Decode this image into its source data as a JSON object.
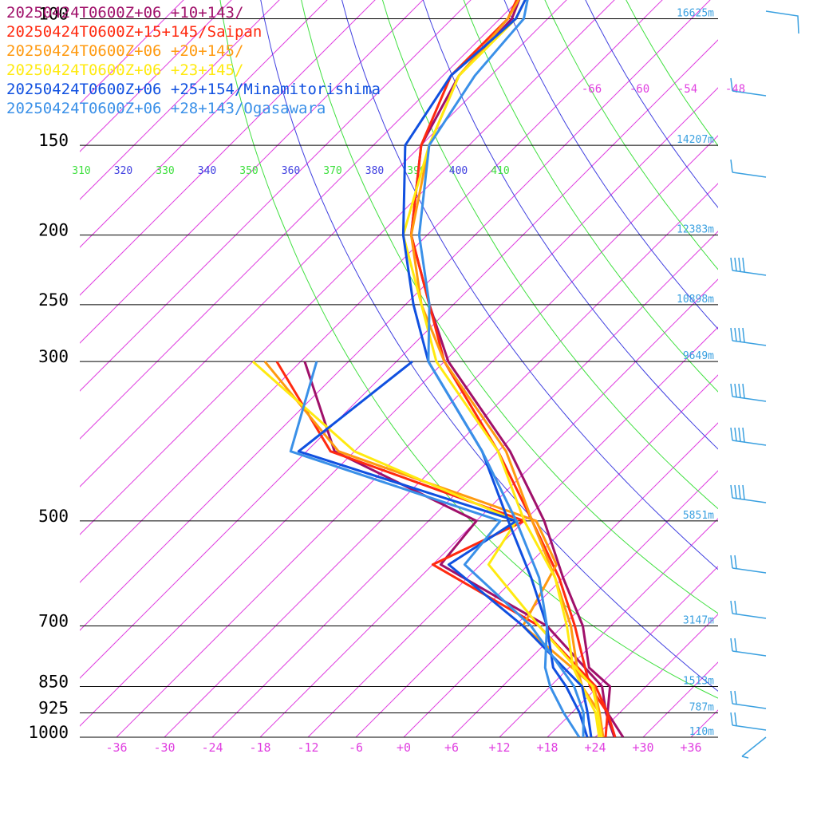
{
  "chart_data": {
    "type": "line",
    "chart_kind": "skew-T log-P sounding",
    "legend_position": "top-left",
    "pressure_levels": [
      {
        "p": 100,
        "label": "100",
        "height": "16625m"
      },
      {
        "p": 150,
        "label": "150",
        "height": "14207m"
      },
      {
        "p": 200,
        "label": "200",
        "height": "12383m"
      },
      {
        "p": 250,
        "label": "250",
        "height": "10898m"
      },
      {
        "p": 300,
        "label": "300",
        "height": "9649m"
      },
      {
        "p": 500,
        "label": "500",
        "height": "5851m"
      },
      {
        "p": 700,
        "label": "700",
        "height": "3147m"
      },
      {
        "p": 850,
        "label": "850",
        "height": "1513m"
      },
      {
        "p": 925,
        "label": "925",
        "height": "787m"
      },
      {
        "p": 1000,
        "label": "1000",
        "height": "110m"
      }
    ],
    "temperature_ticks": [
      {
        "t": -36,
        "label": "-36"
      },
      {
        "t": -30,
        "label": "-30"
      },
      {
        "t": -24,
        "label": "-24"
      },
      {
        "t": -18,
        "label": "-18"
      },
      {
        "t": -12,
        "label": "-12"
      },
      {
        "t": -6,
        "label": "-6"
      },
      {
        "t": 0,
        "label": "+0"
      },
      {
        "t": 6,
        "label": "+6"
      },
      {
        "t": 12,
        "label": "+12"
      },
      {
        "t": 18,
        "label": "+18"
      },
      {
        "t": 24,
        "label": "+24"
      },
      {
        "t": 30,
        "label": "+30"
      },
      {
        "t": 36,
        "label": "+36"
      }
    ],
    "isotherm_labels_100hPa": [
      {
        "t": -66,
        "label": "-66"
      },
      {
        "t": -60,
        "label": "-60"
      },
      {
        "t": -54,
        "label": "-54"
      },
      {
        "t": -48,
        "label": "-48"
      }
    ],
    "theta_labels": [
      {
        "theta": 310,
        "label": "310"
      },
      {
        "theta": 320,
        "label": "320"
      },
      {
        "theta": 330,
        "label": "330"
      },
      {
        "theta": 340,
        "label": "340"
      },
      {
        "theta": 350,
        "label": "350"
      },
      {
        "theta": 360,
        "label": "360"
      },
      {
        "theta": 370,
        "label": "370"
      },
      {
        "theta": 380,
        "label": "380"
      },
      {
        "theta": 390,
        "label": "390"
      },
      {
        "theta": 400,
        "label": "400"
      },
      {
        "theta": 410,
        "label": "410"
      }
    ],
    "colors": {
      "isotherm": "#e040e0",
      "dry_adiabat": "#4040e0",
      "moist_adiabat": "#40e040",
      "isobar": "#000000",
      "height_label": "#3aa0e0",
      "wind_barb": "#3aa0e0"
    },
    "series": [
      {
        "name": "20250424T0600Z+06 +10+143/",
        "color": "#a0106a",
        "temperature": [
          [
            70,
            -85
          ],
          [
            100,
            -76.5
          ],
          [
            120,
            -76
          ],
          [
            150,
            -72
          ],
          [
            200,
            -62
          ],
          [
            250,
            -51
          ],
          [
            300,
            -41.5
          ],
          [
            400,
            -22.5
          ],
          [
            500,
            -9.5
          ],
          [
            600,
            0
          ],
          [
            700,
            8.5
          ],
          [
            800,
            14.5
          ],
          [
            850,
            19.5
          ],
          [
            925,
            22.5
          ],
          [
            1000,
            27.5
          ]
        ],
        "dewpoint": [
          [
            300,
            -59.5
          ],
          [
            400,
            -44.5
          ],
          [
            500,
            -18
          ],
          [
            575,
            -17
          ],
          [
            700,
            4
          ],
          [
            850,
            18.5
          ],
          [
            925,
            22.3
          ],
          [
            1000,
            26.4
          ]
        ]
      },
      {
        "name": "20250424T0600Z+15+145/Saipan",
        "color": "#ff2a10",
        "temperature": [
          [
            75,
            -83
          ],
          [
            100,
            -77
          ],
          [
            120,
            -77
          ],
          [
            150,
            -72
          ],
          [
            200,
            -62
          ],
          [
            250,
            -51
          ],
          [
            300,
            -42
          ],
          [
            400,
            -24
          ],
          [
            500,
            -11
          ],
          [
            600,
            -0.5
          ],
          [
            700,
            7.5
          ],
          [
            800,
            14
          ],
          [
            850,
            17
          ],
          [
            925,
            22.5
          ],
          [
            1000,
            26.5
          ]
        ],
        "dewpoint": [
          [
            300,
            -63
          ],
          [
            400,
            -45
          ],
          [
            500,
            -12
          ],
          [
            575,
            -18
          ],
          [
            700,
            3
          ],
          [
            850,
            17.7
          ],
          [
            925,
            22.5
          ],
          [
            1000,
            25.3
          ]
        ]
      },
      {
        "name": "20250424T0600Z+06 +20+145/",
        "color": "#ff9a10",
        "temperature": [
          [
            70,
            -83
          ],
          [
            100,
            -77
          ],
          [
            120,
            -76
          ],
          [
            150,
            -71
          ],
          [
            200,
            -62
          ],
          [
            250,
            -52
          ],
          [
            300,
            -42
          ],
          [
            400,
            -23
          ],
          [
            500,
            -11
          ],
          [
            600,
            -1
          ],
          [
            700,
            7
          ],
          [
            800,
            13
          ],
          [
            850,
            16
          ],
          [
            925,
            21.5
          ],
          [
            1000,
            25
          ]
        ],
        "dewpoint": [
          [
            300,
            -64.5
          ],
          [
            400,
            -44
          ],
          [
            500,
            -10.5
          ],
          [
            575,
            -2.5
          ],
          [
            700,
            1
          ],
          [
            850,
            17.5
          ],
          [
            925,
            21.5
          ],
          [
            1000,
            24.5
          ]
        ]
      },
      {
        "name": "20250424T0600Z+06 +23+145/",
        "color": "#ffea10",
        "temperature": [
          [
            70,
            -83
          ],
          [
            100,
            -76
          ],
          [
            120,
            -76
          ],
          [
            150,
            -71
          ],
          [
            200,
            -63
          ],
          [
            250,
            -52
          ],
          [
            300,
            -43
          ],
          [
            400,
            -24
          ],
          [
            500,
            -12
          ],
          [
            600,
            -1
          ],
          [
            700,
            6.5
          ],
          [
            800,
            12.5
          ],
          [
            850,
            16
          ],
          [
            925,
            21
          ],
          [
            1000,
            24.5
          ]
        ],
        "dewpoint": [
          [
            300,
            -66
          ],
          [
            400,
            -42
          ],
          [
            500,
            -13
          ],
          [
            575,
            -11
          ],
          [
            700,
            3
          ],
          [
            850,
            17.3
          ],
          [
            925,
            21.3
          ],
          [
            1000,
            24.8
          ]
        ]
      },
      {
        "name": "20250424T0600Z+06 +25+154/Minamitorishima",
        "color": "#1050e0",
        "temperature": [
          [
            70,
            -83
          ],
          [
            100,
            -76
          ],
          [
            120,
            -77
          ],
          [
            150,
            -74
          ],
          [
            200,
            -63
          ],
          [
            250,
            -53
          ],
          [
            300,
            -44
          ],
          [
            400,
            -26
          ],
          [
            500,
            -14
          ],
          [
            600,
            -4
          ],
          [
            700,
            4
          ],
          [
            800,
            10
          ],
          [
            850,
            14
          ],
          [
            925,
            19
          ],
          [
            1000,
            23
          ]
        ],
        "dewpoint": [
          [
            300,
            -46
          ],
          [
            400,
            -49
          ],
          [
            500,
            -13
          ],
          [
            575,
            -16
          ],
          [
            700,
            1
          ],
          [
            850,
            16
          ],
          [
            925,
            20
          ],
          [
            1000,
            23.5
          ]
        ]
      },
      {
        "name": "20250424T0600Z+06 +28+143/Ogasawara",
        "color": "#3a90e8",
        "temperature": [
          [
            80,
            -82
          ],
          [
            100,
            -75
          ],
          [
            120,
            -74
          ],
          [
            150,
            -71
          ],
          [
            200,
            -61
          ],
          [
            250,
            -51
          ],
          [
            300,
            -44
          ],
          [
            400,
            -26
          ],
          [
            500,
            -13
          ],
          [
            600,
            -3
          ],
          [
            700,
            4
          ],
          [
            800,
            9
          ],
          [
            850,
            12
          ],
          [
            925,
            17
          ],
          [
            1000,
            22
          ]
        ],
        "dewpoint": [
          [
            300,
            -58
          ],
          [
            400,
            -50
          ],
          [
            500,
            -15
          ],
          [
            575,
            -14
          ],
          [
            700,
            2
          ],
          [
            850,
            15
          ],
          [
            925,
            19.5
          ],
          [
            1000,
            22.5
          ]
        ]
      }
    ]
  }
}
